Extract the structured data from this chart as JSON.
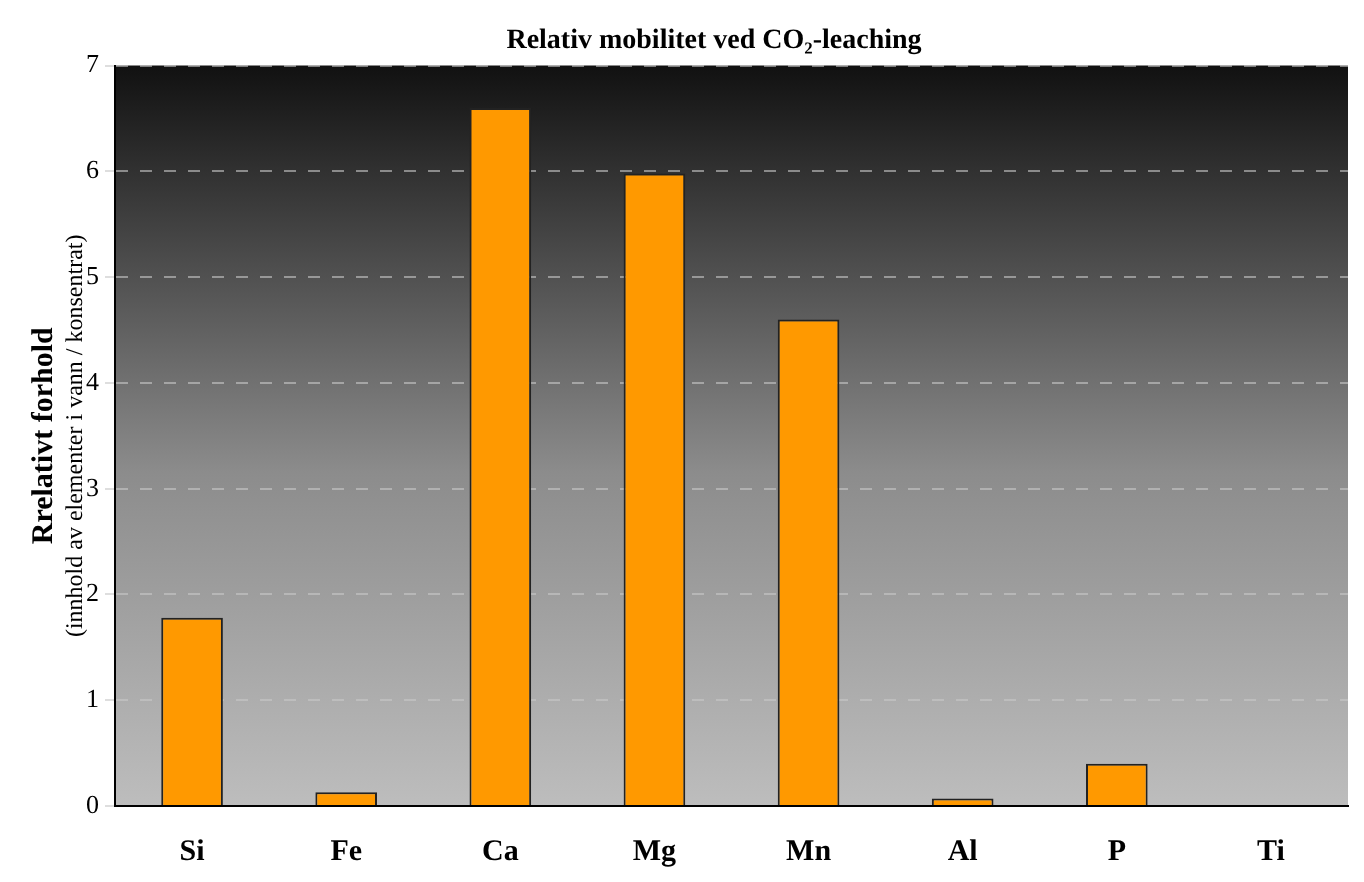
{
  "chart_data": {
    "type": "bar",
    "title": "Relativ mobilitet ved CO₂-leaching",
    "ylabel": "Rrelativt forhold\n(innhold av elementer i vann / konsentrat)",
    "categories": [
      "Si",
      "Fe",
      "Ca",
      "Mg",
      "Mn",
      "Al",
      "P",
      "Ti"
    ],
    "values": [
      1.78,
      0.13,
      6.6,
      5.98,
      4.6,
      0.07,
      0.4,
      0
    ],
    "color": "#ff9900",
    "ylim": [
      0,
      7
    ],
    "yticks": [
      0,
      1,
      2,
      3,
      4,
      5,
      6,
      7
    ],
    "grid": "y",
    "legend": false
  }
}
